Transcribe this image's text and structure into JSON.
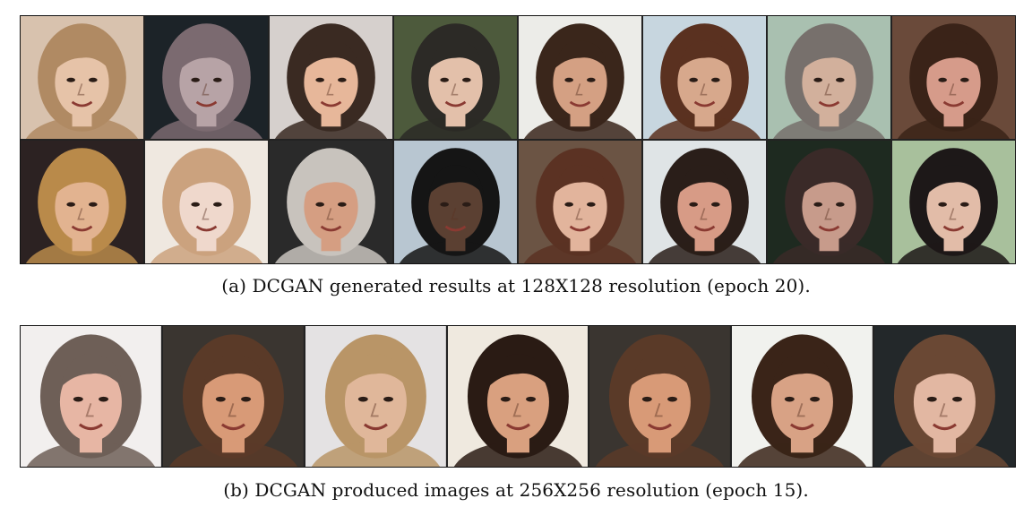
{
  "figure": {
    "panel_a": {
      "caption": "(a) DCGAN generated results at 128X128 resolution (epoch 20).",
      "rows": 2,
      "cols": 8,
      "tiles": [
        {
          "bg": "#d8c2ae",
          "skin": "#e6c3a8",
          "hair": "#b08a63"
        },
        {
          "bg": "#1c2328",
          "skin": "#b7a3a6",
          "hair": "#7b6a70"
        },
        {
          "bg": "#d6d0cd",
          "skin": "#e7b79a",
          "hair": "#3a2a22"
        },
        {
          "bg": "#4d5a3c",
          "skin": "#e3c0aa",
          "hair": "#2c2a26"
        },
        {
          "bg": "#ecece8",
          "skin": "#d4a083",
          "hair": "#3a261b"
        },
        {
          "bg": "#c7d6df",
          "skin": "#d7a88c",
          "hair": "#5a3120"
        },
        {
          "bg": "#a9c0b0",
          "skin": "#d2b09c",
          "hair": "#77706c"
        },
        {
          "bg": "#6a4a3a",
          "skin": "#d69b8a",
          "hair": "#3a2318"
        },
        {
          "bg": "#2c2222",
          "skin": "#e2b390",
          "hair": "#b98a4a"
        },
        {
          "bg": "#efe8e0",
          "skin": "#efd8cc",
          "hair": "#cba27e"
        },
        {
          "bg": "#2a2a2a",
          "skin": "#d59e82",
          "hair": "#c8c3bd"
        },
        {
          "bg": "#b8c6d1",
          "skin": "#5b4032",
          "hair": "#151515"
        },
        {
          "bg": "#6b5444",
          "skin": "#e2b49c",
          "hair": "#5b3223"
        },
        {
          "bg": "#dfe4e6",
          "skin": "#d79b86",
          "hair": "#2a1e19"
        },
        {
          "bg": "#1e2a20",
          "skin": "#c79b8b",
          "hair": "#3a2a28"
        },
        {
          "bg": "#a8c09c",
          "skin": "#e2bca8",
          "hair": "#1d1818"
        }
      ]
    },
    "panel_b": {
      "caption": "(b) DCGAN produced images at 256X256 resolution (epoch 15).",
      "rows": 1,
      "cols": 7,
      "tiles": [
        {
          "bg": "#f2efee",
          "skin": "#e7b6a4",
          "hair": "#6e5f57"
        },
        {
          "bg": "#3a3530",
          "skin": "#d89a77",
          "hair": "#5a3a28"
        },
        {
          "bg": "#e4e2e3",
          "skin": "#e0b79a",
          "hair": "#b99567"
        },
        {
          "bg": "#efe9df",
          "skin": "#d9a07f",
          "hair": "#2a1b14"
        },
        {
          "bg": "#3a3530",
          "skin": "#d89a77",
          "hair": "#5a3a28"
        },
        {
          "bg": "#f1f2ee",
          "skin": "#d8a285",
          "hair": "#3a2418"
        },
        {
          "bg": "#23282a",
          "skin": "#e2b7a2",
          "hair": "#6a4834"
        }
      ]
    }
  }
}
